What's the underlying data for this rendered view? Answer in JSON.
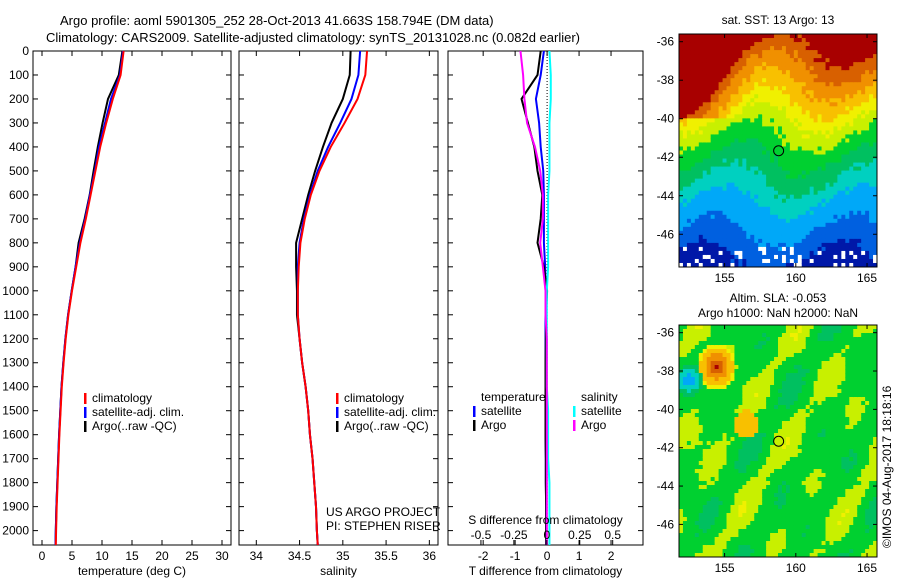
{
  "title_line1": "Argo profile: aoml 5901305_252 28-Oct-2013 41.663S 158.794E (DM data)",
  "title_line2": "Climatology: CARS2009. Satellite-adjusted climatology: synTS_20131028.nc (0.082d earlier)",
  "footer_stamp": "©IMOS 04-Aug-2017 18:18:16",
  "colors": {
    "climatology": "#ff0000",
    "satellite": "#0000ff",
    "argo": "#000000",
    "sal_satellite": "#00ffff",
    "sal_argo": "#ff00ff"
  },
  "chart_data": [
    {
      "type": "line",
      "name": "temperature-profile",
      "xlabel": "temperature (deg C)",
      "ylabel": "",
      "xlim": [
        -1.5,
        31.5
      ],
      "ylim": [
        2060,
        0
      ],
      "xticks": [
        0,
        5,
        10,
        15,
        20,
        25,
        30
      ],
      "yticks": [
        0,
        100,
        200,
        300,
        400,
        500,
        600,
        700,
        800,
        900,
        1000,
        1100,
        1200,
        1300,
        1400,
        1500,
        1600,
        1700,
        1800,
        1900,
        2000
      ],
      "depth": [
        0,
        100,
        200,
        300,
        400,
        500,
        600,
        700,
        800,
        900,
        1000,
        1100,
        1200,
        1300,
        1400,
        1500,
        1600,
        1700,
        1800,
        1900,
        2000,
        2060
      ],
      "series": [
        {
          "name": "climatology",
          "color": "#ff0000",
          "values": [
            13.6,
            13.1,
            11.8,
            10.7,
            9.7,
            8.9,
            8.1,
            7.3,
            6.4,
            5.7,
            5.0,
            4.4,
            3.95,
            3.6,
            3.3,
            3.1,
            2.9,
            2.75,
            2.6,
            2.45,
            2.35,
            2.3
          ]
        },
        {
          "name": "satellite-adj. clim.",
          "color": "#0000ff",
          "values": [
            13.5,
            13.0,
            11.5,
            10.5,
            9.5,
            8.8,
            8.0,
            7.2,
            6.3,
            5.6,
            4.95,
            4.35,
            3.9,
            3.55,
            3.25,
            3.05,
            2.85,
            2.7,
            2.55,
            2.4,
            2.3,
            2.25
          ]
        },
        {
          "name": "Argo(..raw -QC)",
          "color": "#000000",
          "values": [
            13.4,
            12.8,
            11.0,
            10.1,
            9.3,
            8.6,
            7.95,
            7.1,
            6.1,
            5.6,
            4.95,
            4.35,
            3.9,
            3.55,
            3.25,
            3.05,
            2.85,
            2.7,
            2.55,
            2.4,
            2.3,
            2.25
          ]
        }
      ],
      "legend": "middle-right"
    },
    {
      "type": "line",
      "name": "salinity-profile",
      "xlabel": "salinity",
      "xlim": [
        33.8,
        36.1
      ],
      "ylim": [
        2060,
        0
      ],
      "xticks": [
        34,
        34.5,
        35,
        35.5,
        36
      ],
      "depth": [
        0,
        100,
        200,
        300,
        400,
        500,
        600,
        700,
        800,
        900,
        1000,
        1100,
        1200,
        1300,
        1400,
        1500,
        1600,
        1700,
        1800,
        1900,
        2000,
        2060
      ],
      "series": [
        {
          "name": "climatology",
          "color": "#ff0000",
          "values": [
            35.28,
            35.26,
            35.17,
            35.02,
            34.86,
            34.73,
            34.63,
            34.56,
            34.51,
            34.49,
            34.48,
            34.48,
            34.5,
            34.53,
            34.57,
            34.6,
            34.62,
            34.65,
            34.67,
            34.69,
            34.7,
            34.71
          ]
        },
        {
          "name": "satellite-adj. clim.",
          "color": "#0000ff",
          "values": [
            35.2,
            35.18,
            35.1,
            34.97,
            34.83,
            34.71,
            34.62,
            34.55,
            34.5,
            34.48,
            34.48,
            34.48,
            34.5,
            34.53,
            34.57,
            34.6,
            34.62,
            34.65,
            34.67,
            34.69,
            34.7,
            34.71
          ]
        },
        {
          "name": "Argo(..raw -QC)",
          "color": "#000000",
          "values": [
            35.09,
            35.08,
            35.0,
            34.87,
            34.77,
            34.68,
            34.6,
            34.53,
            34.46,
            34.46,
            34.47,
            34.47,
            34.5,
            34.53,
            34.57,
            34.6,
            34.62,
            34.65,
            34.67,
            34.69,
            34.7,
            34.71
          ]
        }
      ],
      "annotation": [
        "US ARGO PROJECT",
        "PI: STEPHEN RISER"
      ]
    },
    {
      "type": "line",
      "name": "difference-profile",
      "xlabel": "T difference from climatology",
      "x2label": "S difference from climatology",
      "xlim": [
        -3.1,
        3.0
      ],
      "x2lim": [
        -0.75,
        0.73
      ],
      "ylim": [
        2060,
        0
      ],
      "xticks": [
        -2,
        -1,
        0,
        1,
        2
      ],
      "x2ticks": [
        -0.5,
        -0.25,
        0,
        0.25,
        0.5
      ],
      "x2ticklabels": [
        "-0.5",
        "-0.25",
        "0",
        "0.25",
        "0.5"
      ],
      "depth": [
        0,
        100,
        200,
        300,
        400,
        500,
        600,
        700,
        800,
        900,
        1000,
        1100,
        1200,
        1300,
        1400,
        1500,
        1600,
        1700,
        1800,
        1900,
        2000,
        2060
      ],
      "series": [
        {
          "name": "temperature satellite",
          "axis": "T",
          "color": "#0000ff",
          "values": [
            -0.1,
            -0.2,
            -0.35,
            -0.25,
            -0.2,
            -0.12,
            -0.1,
            -0.1,
            -0.1,
            -0.06,
            -0.05,
            -0.05,
            -0.05,
            -0.05,
            -0.05,
            -0.05,
            -0.05,
            -0.04,
            -0.04,
            -0.03,
            -0.03,
            -0.03
          ]
        },
        {
          "name": "temperature Argo",
          "axis": "T",
          "color": "#000000",
          "values": [
            -0.2,
            -0.3,
            -0.8,
            -0.6,
            -0.4,
            -0.3,
            -0.15,
            -0.2,
            -0.3,
            -0.1,
            0,
            -0.03,
            -0.04,
            -0.05,
            -0.05,
            -0.05,
            -0.05,
            -0.04,
            -0.04,
            -0.03,
            -0.03,
            -0.03
          ]
        },
        {
          "name": "salinity satellite",
          "axis": "S",
          "color": "#00ffff",
          "values": [
            0.02,
            0.03,
            0.03,
            0.02,
            0.02,
            0.02,
            0.01,
            0.01,
            0.01,
            0.01,
            0.0,
            0.0,
            0.0,
            0.0,
            0.0,
            0.01,
            0.01,
            0.01,
            0.02,
            0.02,
            0.02,
            0.02
          ]
        },
        {
          "name": "salinity Argo",
          "axis": "S",
          "color": "#ff00ff",
          "values": [
            -0.2,
            -0.18,
            -0.17,
            -0.15,
            -0.09,
            -0.05,
            -0.03,
            -0.03,
            -0.05,
            -0.03,
            -0.01,
            -0.01,
            0,
            0,
            0,
            0,
            0,
            0,
            0,
            0,
            0,
            0
          ]
        }
      ],
      "legend_headers": [
        "temperature",
        "salinity"
      ],
      "legend_labels": [
        "satellite",
        "Argo",
        "satellite",
        "Argo"
      ]
    },
    {
      "type": "heatmap",
      "name": "sst-map",
      "title": "sat. SST: 13 Argo: 13",
      "xlim": [
        151.8,
        165.7
      ],
      "ylim": [
        -47.7,
        -35.6
      ],
      "xticks": [
        155,
        160,
        165
      ],
      "yticks": [
        -36,
        -38,
        -40,
        -42,
        -44,
        -46
      ],
      "marker": {
        "lon": 158.794,
        "lat": -41.663
      }
    },
    {
      "type": "heatmap",
      "name": "sla-map",
      "title_line1": "Altim. SLA: -0.053",
      "title_line2": "Argo h1000: NaN h2000: NaN",
      "xlim": [
        151.8,
        165.7
      ],
      "ylim": [
        -47.7,
        -35.6
      ],
      "xticks": [
        155,
        160,
        165
      ],
      "yticks": [
        -36,
        -38,
        -40,
        -42,
        -44,
        -46
      ],
      "marker": {
        "lon": 158.794,
        "lat": -41.663
      }
    }
  ]
}
